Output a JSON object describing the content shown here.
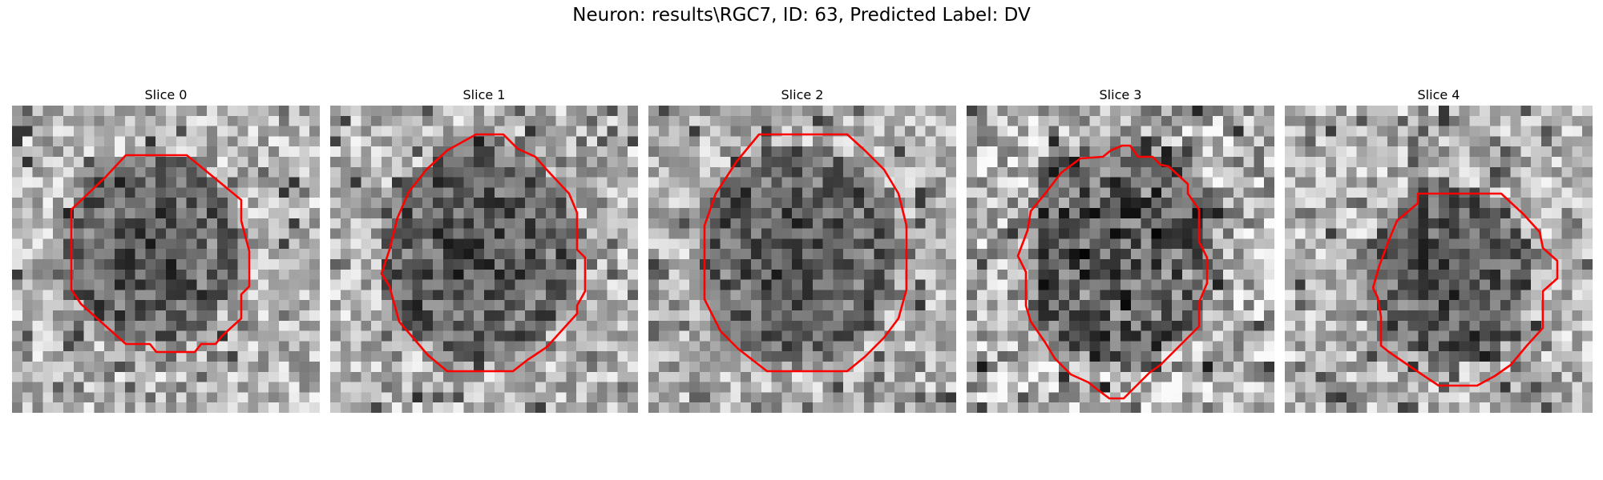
{
  "figure": {
    "title": "Neuron: results\\RGC7, ID: 63, Predicted Label: DV",
    "contour_color": "#ff0000"
  },
  "panels": [
    {
      "title": "Slice 0"
    },
    {
      "title": "Slice 1"
    },
    {
      "title": "Slice 2"
    },
    {
      "title": "Slice 3"
    },
    {
      "title": "Slice 4"
    }
  ]
}
